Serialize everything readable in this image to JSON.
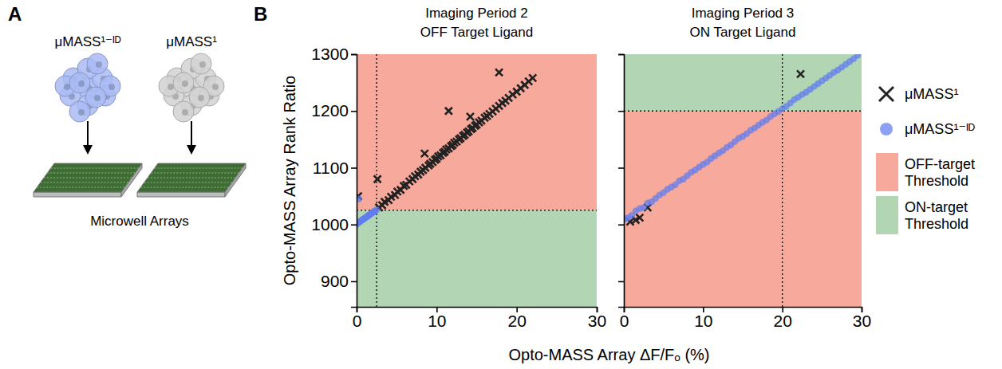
{
  "panel_labels": [
    "A",
    "B"
  ],
  "diagram": {
    "groups": [
      {
        "label": "μMASS¹⁻ᴵᴰ",
        "color": "#a9bbf3"
      },
      {
        "label": "μMASS¹",
        "color": "#d2d2d2"
      }
    ],
    "caption": "Microwell Arrays"
  },
  "chart_data": [
    {
      "type": "scatter",
      "title": "Imaging Period 2",
      "subtitle": "OFF Target Ligand",
      "xlabel": "Opto-MASS Array ΔF/Fₒ (%)",
      "ylabel": "Opto-MASS Array Rank Ratio",
      "xlim": [
        0,
        30
      ],
      "xticks": [
        0,
        10,
        20,
        30
      ],
      "ylim": [
        855,
        1300
      ],
      "yticks": [
        900,
        1000,
        1100,
        1200,
        1300
      ],
      "thresholds": {
        "x": 2.5,
        "y": 1025
      },
      "regions": [
        {
          "name": "OFF-target Threshold",
          "color": "#f7a99b",
          "y": [
            1025,
            1300
          ]
        },
        {
          "name": "ON-target Threshold",
          "color": "#b2d5b3",
          "y": [
            855,
            1025
          ]
        }
      ],
      "series": [
        {
          "name": "μMASS¹",
          "color": "#222222",
          "marker": "x",
          "x": [
            2.8,
            3.2,
            3.5,
            4.0,
            4.3,
            4.8,
            5.1,
            5.5,
            5.9,
            6.2,
            6.6,
            7.0,
            7.3,
            7.7,
            8.0,
            8.3,
            8.6,
            9.0,
            9.2,
            9.5,
            9.8,
            10.0,
            10.2,
            10.5,
            10.8,
            11.0,
            11.2,
            11.5,
            11.8,
            12.0,
            12.2,
            12.5,
            12.8,
            13.0,
            13.3,
            13.5,
            13.8,
            14.0,
            14.3,
            14.5,
            14.8,
            15.0,
            15.3,
            15.6,
            16.0,
            16.3,
            16.6,
            17.0,
            17.4,
            17.8,
            18.2,
            18.6,
            19.0,
            19.5,
            20.0,
            20.5,
            21.0,
            21.5,
            22.0,
            0.2,
            2.6,
            11.5,
            17.8,
            8.5,
            14.2
          ],
          "values": [
            1030,
            1034,
            1040,
            1043,
            1049,
            1052,
            1058,
            1061,
            1068,
            1070,
            1076,
            1080,
            1085,
            1088,
            1093,
            1096,
            1100,
            1104,
            1107,
            1110,
            1114,
            1116,
            1120,
            1122,
            1126,
            1128,
            1132,
            1134,
            1138,
            1140,
            1144,
            1146,
            1150,
            1152,
            1156,
            1158,
            1162,
            1164,
            1168,
            1170,
            1174,
            1176,
            1180,
            1183,
            1188,
            1191,
            1195,
            1199,
            1204,
            1209,
            1214,
            1218,
            1223,
            1229,
            1234,
            1240,
            1246,
            1252,
            1258,
            1050,
            1080,
            1200,
            1268,
            1125,
            1190
          ]
        },
        {
          "name": "μMASS¹⁻ᴵᴰ",
          "color": "#5f7df0",
          "marker": "circle",
          "x": [
            0,
            0.1,
            0.2,
            0.3,
            0.4,
            0.5,
            0.6,
            0.7,
            0.8,
            0.9,
            1.0,
            1.1,
            1.2,
            1.3,
            1.4,
            1.5,
            1.6,
            1.7,
            1.8,
            1.9,
            2.0,
            2.1,
            2.2,
            2.3,
            2.5,
            0.3
          ],
          "values": [
            1000,
            1002,
            1003,
            1004,
            1005,
            1006,
            1007,
            1008,
            1009,
            1010,
            1011,
            1012,
            1013,
            1014,
            1015,
            1016,
            1017,
            1018,
            1019,
            1020,
            1021,
            1022,
            1023,
            1024,
            1026,
            1045
          ]
        }
      ]
    },
    {
      "type": "scatter",
      "title": "Imaging Period 3",
      "subtitle": "ON Target Ligand",
      "xlim": [
        0,
        30
      ],
      "xticks": [
        0,
        10,
        20,
        30
      ],
      "ylim": [
        855,
        1300
      ],
      "yticks": [
        900,
        1000,
        1100,
        1200,
        1300
      ],
      "tick_labels": "x",
      "legend": "right",
      "thresholds": {
        "x": 20,
        "y": 1200
      },
      "regions": [
        {
          "name": "OFF-target Threshold",
          "color": "#f7a99b",
          "y": [
            855,
            1200
          ]
        },
        {
          "name": "ON-target Threshold",
          "color": "#b2d5b3",
          "y": [
            1200,
            1300
          ]
        }
      ],
      "series": [
        {
          "name": "μMASS¹",
          "color": "#222222",
          "marker": "x",
          "x": [
            0.8,
            1.5,
            2.0,
            3.0,
            22.3
          ],
          "values": [
            1005,
            1008,
            1012,
            1030,
            1265
          ]
        },
        {
          "name": "μMASS¹⁻ᴵᴰ",
          "color": "#5f7df0",
          "marker": "circle",
          "x": [
            0.2,
            0.5,
            1,
            1.5,
            2,
            2.5,
            3,
            3.5,
            4,
            4.5,
            5,
            5.5,
            6,
            6.5,
            7,
            7.5,
            8,
            8.5,
            9,
            9.5,
            10,
            10.5,
            11,
            11.5,
            12,
            12.5,
            13,
            13.5,
            14,
            14.5,
            15,
            15.5,
            16,
            16.5,
            17,
            17.5,
            18,
            18.5,
            19,
            19.5,
            20,
            20.5,
            21,
            21.5,
            22,
            22.5,
            23,
            23.5,
            24,
            24.5,
            25,
            25.5,
            26,
            26.5,
            27,
            27.5,
            28,
            28.5,
            29,
            29.5
          ],
          "values": [
            1010,
            1012,
            1016,
            1024,
            1028,
            1030,
            1038,
            1040,
            1046,
            1052,
            1056,
            1062,
            1066,
            1070,
            1077,
            1080,
            1086,
            1092,
            1096,
            1101,
            1106,
            1110,
            1116,
            1121,
            1126,
            1130,
            1136,
            1140,
            1146,
            1152,
            1155,
            1160,
            1166,
            1170,
            1175,
            1180,
            1184,
            1190,
            1195,
            1199,
            1204,
            1208,
            1214,
            1220,
            1224,
            1229,
            1233,
            1238,
            1243,
            1248,
            1253,
            1258,
            1263,
            1268,
            1272,
            1277,
            1282,
            1287,
            1292,
            1298
          ]
        }
      ]
    }
  ]
}
